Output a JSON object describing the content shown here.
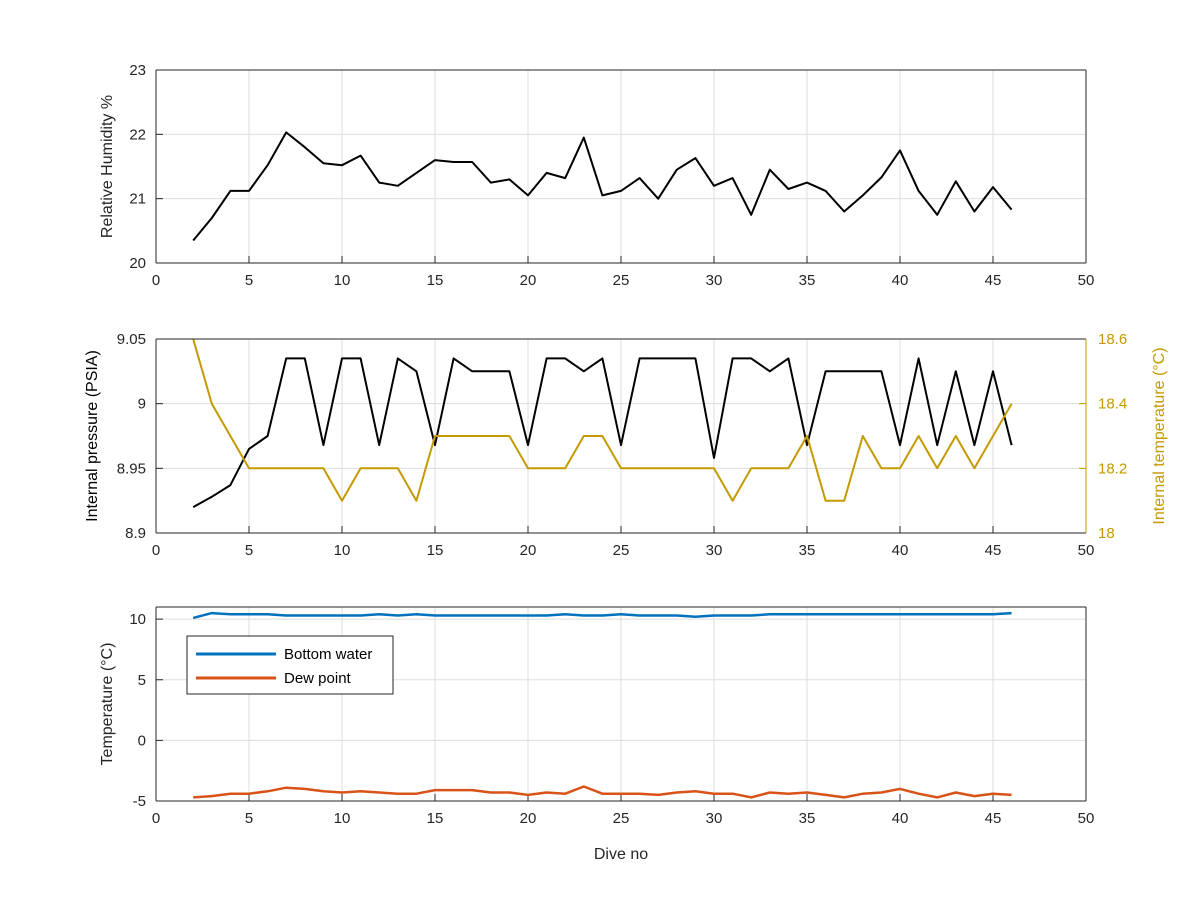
{
  "figure": {
    "xlabel": "Dive no"
  },
  "chart_data": [
    {
      "type": "line",
      "title": "",
      "xlabel": "",
      "ylabel": "Relative Humidity %",
      "xlim": [
        0,
        50
      ],
      "ylim": [
        20,
        23
      ],
      "xticks": [
        0,
        5,
        10,
        15,
        20,
        25,
        30,
        35,
        40,
        45,
        50
      ],
      "yticks": [
        20,
        21,
        22,
        23
      ],
      "grid": true,
      "series": [
        {
          "color": "#000000",
          "x": [
            2,
            3,
            4,
            5,
            6,
            7,
            8,
            9,
            10,
            11,
            12,
            13,
            14,
            15,
            16,
            17,
            18,
            19,
            20,
            21,
            22,
            23,
            24,
            25,
            26,
            27,
            28,
            29,
            30,
            31,
            32,
            33,
            34,
            35,
            36,
            37,
            38,
            39,
            40,
            41,
            42,
            43,
            44,
            45,
            46
          ],
          "y": [
            20.35,
            20.7,
            21.12,
            21.12,
            21.52,
            22.03,
            21.8,
            21.55,
            21.52,
            21.67,
            21.25,
            21.2,
            21.4,
            21.6,
            21.57,
            21.57,
            21.25,
            21.3,
            21.05,
            21.4,
            21.32,
            21.95,
            21.05,
            21.12,
            21.32,
            21.0,
            21.45,
            21.63,
            21.2,
            21.32,
            20.75,
            21.45,
            21.15,
            21.25,
            21.12,
            20.8,
            21.05,
            21.33,
            21.75,
            21.12,
            20.75,
            21.27,
            20.8,
            21.18,
            20.83
          ]
        }
      ]
    },
    {
      "type": "line",
      "title": "",
      "xlabel": "",
      "ylabel": "Internal pressure (PSIA)",
      "y2label": "Internal temperature (°C)",
      "xlim": [
        0,
        50
      ],
      "ylim": [
        8.9,
        9.05
      ],
      "y2lim": [
        18,
        18.6
      ],
      "xticks": [
        0,
        5,
        10,
        15,
        20,
        25,
        30,
        35,
        40,
        45,
        50
      ],
      "yticks": [
        "8.9",
        "8.95",
        "9",
        "9.05"
      ],
      "y2ticks": [
        "18",
        "18.2",
        "18.4",
        "18.6"
      ],
      "grid": true,
      "right_axis_color": "#C49A00",
      "series": [
        {
          "axis": "left",
          "color": "#000000",
          "x": [
            2,
            3,
            4,
            5,
            5.5,
            6,
            7,
            8,
            9,
            10,
            11,
            12,
            13,
            14,
            15,
            16,
            17,
            18,
            19,
            20,
            21,
            22,
            23,
            24,
            25,
            26,
            27,
            28,
            29,
            30,
            31,
            32,
            33,
            34,
            35,
            36,
            37,
            38,
            39,
            40,
            41,
            42,
            43,
            44,
            45,
            46
          ],
          "y": [
            8.92,
            8.928,
            8.937,
            8.965,
            8.97,
            8.975,
            9.035,
            9.035,
            8.968,
            9.035,
            9.035,
            8.968,
            9.035,
            9.025,
            8.968,
            9.035,
            9.025,
            9.025,
            9.025,
            8.968,
            9.035,
            9.035,
            9.025,
            9.035,
            8.968,
            9.035,
            9.035,
            9.035,
            9.035,
            8.958,
            9.035,
            9.035,
            9.025,
            9.035,
            8.968,
            9.025,
            9.025,
            9.025,
            9.025,
            8.968,
            9.035,
            8.968,
            9.025,
            8.968,
            9.025,
            8.968
          ]
        },
        {
          "axis": "right",
          "color": "#C49A00",
          "x": [
            2,
            3,
            4,
            5,
            6,
            7,
            8,
            9,
            10,
            11,
            12,
            13,
            14,
            15,
            16,
            17,
            18,
            19,
            20,
            21,
            22,
            23,
            24,
            25,
            26,
            27,
            28,
            29,
            30,
            31,
            32,
            33,
            34,
            35,
            36,
            37,
            38,
            39,
            40,
            41,
            42,
            43,
            44,
            45,
            46
          ],
          "y": [
            18.6,
            18.4,
            18.3,
            18.2,
            18.2,
            18.2,
            18.2,
            18.2,
            18.1,
            18.2,
            18.2,
            18.2,
            18.1,
            18.3,
            18.3,
            18.3,
            18.3,
            18.3,
            18.2,
            18.2,
            18.2,
            18.3,
            18.3,
            18.2,
            18.2,
            18.2,
            18.2,
            18.2,
            18.2,
            18.1,
            18.2,
            18.2,
            18.2,
            18.3,
            18.1,
            18.1,
            18.3,
            18.2,
            18.2,
            18.3,
            18.2,
            18.3,
            18.2,
            18.3,
            18.4
          ]
        }
      ]
    },
    {
      "type": "line",
      "title": "",
      "xlabel": "Dive no",
      "ylabel": "Temperature (°C)",
      "xlim": [
        0,
        50
      ],
      "ylim": [
        -5,
        11
      ],
      "xticks": [
        0,
        5,
        10,
        15,
        20,
        25,
        30,
        35,
        40,
        45,
        50
      ],
      "yticks": [
        -5,
        0,
        5,
        10
      ],
      "grid": true,
      "legend_position": "top-left",
      "series": [
        {
          "name": "Bottom water",
          "color": "#0072BD",
          "x": [
            2,
            3,
            4,
            5,
            6,
            7,
            8,
            9,
            10,
            11,
            12,
            13,
            14,
            15,
            16,
            17,
            18,
            19,
            20,
            21,
            22,
            23,
            24,
            25,
            26,
            27,
            28,
            29,
            30,
            31,
            32,
            33,
            34,
            35,
            36,
            37,
            38,
            39,
            40,
            41,
            42,
            43,
            44,
            45,
            46
          ],
          "y": [
            10.1,
            10.5,
            10.4,
            10.4,
            10.4,
            10.3,
            10.3,
            10.3,
            10.3,
            10.3,
            10.4,
            10.3,
            10.4,
            10.3,
            10.3,
            10.3,
            10.3,
            10.3,
            10.3,
            10.3,
            10.4,
            10.3,
            10.3,
            10.4,
            10.3,
            10.3,
            10.3,
            10.2,
            10.3,
            10.3,
            10.3,
            10.4,
            10.4,
            10.4,
            10.4,
            10.4,
            10.4,
            10.4,
            10.4,
            10.4,
            10.4,
            10.4,
            10.4,
            10.4,
            10.5
          ]
        },
        {
          "name": "Dew point",
          "color": "#D95319",
          "x": [
            2,
            3,
            4,
            5,
            6,
            7,
            8,
            9,
            10,
            11,
            12,
            13,
            14,
            15,
            16,
            17,
            18,
            19,
            20,
            21,
            22,
            23,
            24,
            25,
            26,
            27,
            28,
            29,
            30,
            31,
            32,
            33,
            34,
            35,
            36,
            37,
            38,
            39,
            40,
            41,
            42,
            43,
            44,
            45,
            46
          ],
          "y": [
            -4.7,
            -4.6,
            -4.4,
            -4.4,
            -4.2,
            -3.9,
            -4.0,
            -4.2,
            -4.3,
            -4.2,
            -4.3,
            -4.4,
            -4.4,
            -4.1,
            -4.1,
            -4.1,
            -4.3,
            -4.3,
            -4.5,
            -4.3,
            -4.4,
            -3.8,
            -4.4,
            -4.4,
            -4.4,
            -4.5,
            -4.3,
            -4.2,
            -4.4,
            -4.4,
            -4.7,
            -4.3,
            -4.4,
            -4.3,
            -4.5,
            -4.7,
            -4.4,
            -4.3,
            -4.0,
            -4.4,
            -4.7,
            -4.3,
            -4.6,
            -4.4,
            -4.5
          ]
        }
      ]
    }
  ]
}
